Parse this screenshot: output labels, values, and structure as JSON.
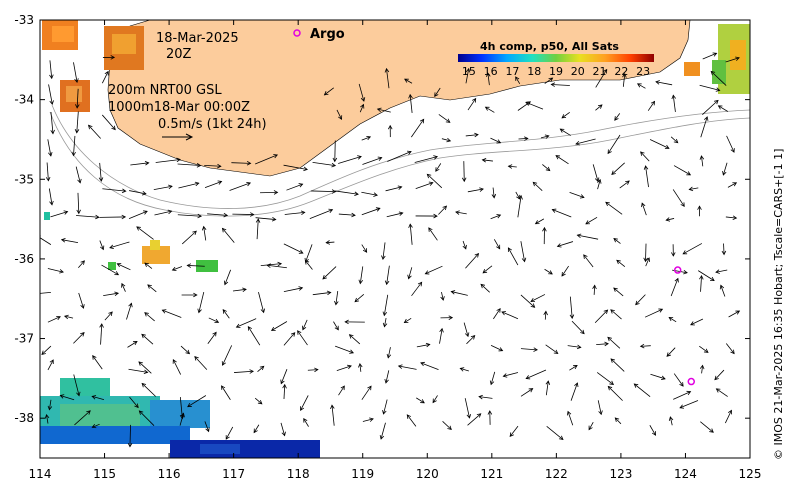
{
  "date_line": "18-Mar-2025",
  "time_line": "20Z",
  "legend_argo": "Argo",
  "colorbar_title": "4h comp, p50, All Sats",
  "colorbar_ticks": [
    "15",
    "16",
    "17",
    "18",
    "19",
    "20",
    "21",
    "22",
    "23"
  ],
  "colorbar_range": [
    14.5,
    23.5
  ],
  "depth_line1": "200m  NRT00 GSL",
  "depth_line2": "1000m18-Mar 00:00Z",
  "scale_label": "0.5m/s (1kt 24h)",
  "credit": "© IMOS 21-Mar-2025 16:35 Hobart; Tscale=CARS+[-1 1]",
  "x_ticks": [
    "114",
    "115",
    "116",
    "117",
    "118",
    "119",
    "120",
    "121",
    "122",
    "123",
    "124",
    "125"
  ],
  "y_ticks": [
    "-33",
    "-34",
    "-35",
    "-36",
    "-37",
    "-38"
  ],
  "extent": {
    "lon": [
      114,
      125
    ],
    "lat": [
      -38.5,
      -33
    ]
  },
  "colors": {
    "land": "#fccc9c",
    "argo": "#e000e0",
    "vector": "#000000"
  },
  "argo_floats": [
    {
      "lon": 123.88,
      "lat": -36.14
    },
    {
      "lon": 124.09,
      "lat": -37.54
    }
  ]
}
